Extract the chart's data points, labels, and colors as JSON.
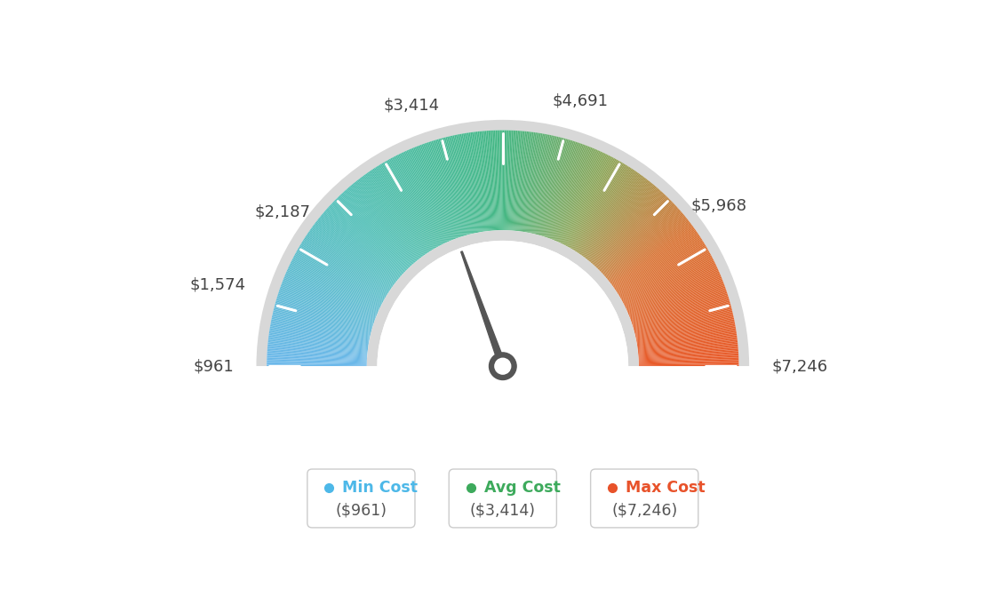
{
  "min_val": 961,
  "max_val": 7246,
  "avg_val": 3414,
  "labels": {
    "min": "$961",
    "v1574": "$1,574",
    "v2187": "$2,187",
    "avg": "$3,414",
    "v4691": "$4,691",
    "v5968": "$5,968",
    "max": "$7,246"
  },
  "label_values": [
    961,
    1574,
    2187,
    3414,
    4691,
    5968,
    7246
  ],
  "legend": [
    {
      "label": "Min Cost",
      "sublabel": "($961)",
      "color": "#4db8e8"
    },
    {
      "label": "Avg Cost",
      "sublabel": "($3,414)",
      "color": "#3daa5c"
    },
    {
      "label": "Max Cost",
      "sublabel": "($7,246)",
      "color": "#e8522a"
    }
  ],
  "color_stops": [
    [
      0.0,
      [
        0.42,
        0.72,
        0.92
      ]
    ],
    [
      0.25,
      [
        0.32,
        0.75,
        0.72
      ]
    ],
    [
      0.5,
      [
        0.27,
        0.72,
        0.52
      ]
    ],
    [
      0.65,
      [
        0.55,
        0.65,
        0.35
      ]
    ],
    [
      0.8,
      [
        0.85,
        0.45,
        0.2
      ]
    ],
    [
      1.0,
      [
        0.91,
        0.35,
        0.16
      ]
    ]
  ],
  "background_color": "#ffffff",
  "outer_r": 1.25,
  "inner_r": 0.72,
  "border_width": 0.055,
  "needle_color": "#555555",
  "pivot_color": "#555555"
}
